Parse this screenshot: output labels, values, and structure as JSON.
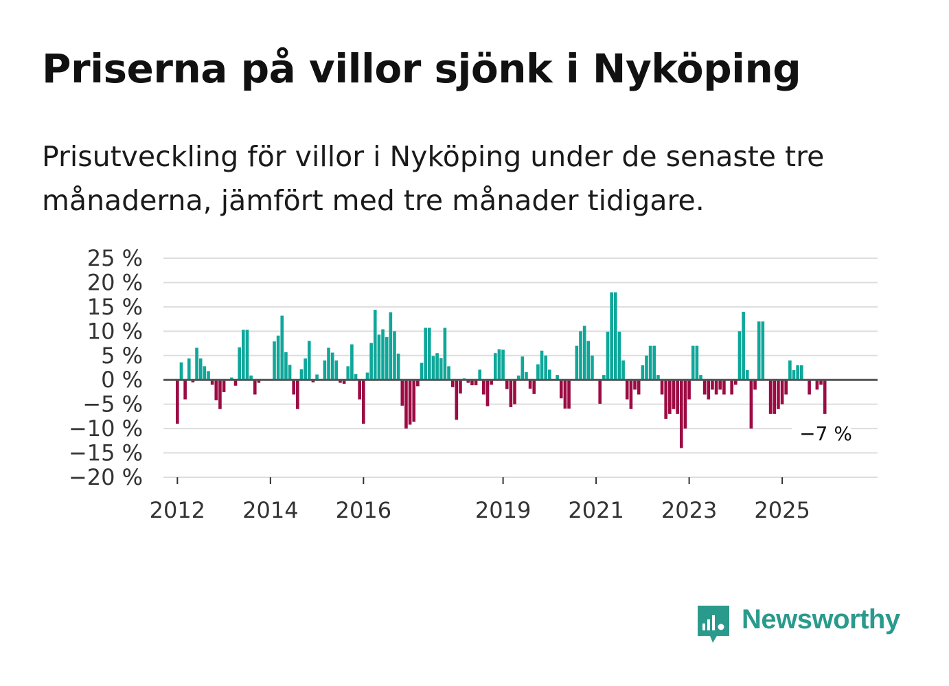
{
  "title": "Priserna på villor sjönk i Nyköping",
  "subtitle": "Prisutveckling för villor i Nyköping under de senaste tre månaderna, jämfört med tre månader tidigare.",
  "brand": "Newsworthy",
  "colors": {
    "positive": "#0fa79a",
    "negative": "#9c0b43",
    "grid": "#dddddd",
    "zero": "#555555",
    "brand": "#2a9a8c"
  },
  "chart_data": {
    "type": "bar",
    "title": "Priserna på villor sjönk i Nyköping",
    "xlabel": "",
    "ylabel": "",
    "ylim": [
      -20,
      25
    ],
    "yticks": [
      25,
      20,
      15,
      10,
      5,
      0,
      -5,
      -10,
      -15,
      -20
    ],
    "ytick_labels": [
      "25 %",
      "20 %",
      "15 %",
      "10 %",
      "5 %",
      "0 %",
      "−5 %",
      "−10 %",
      "−15 %",
      "−20 %"
    ],
    "xlim": [
      2011.7,
      2027.05
    ],
    "xticks": [
      2012,
      2014,
      2016,
      2019,
      2021,
      2023,
      2025
    ],
    "xtick_labels": [
      "2012",
      "2014",
      "2016",
      "2019",
      "2021",
      "2023",
      "2025"
    ],
    "start": 2012.0,
    "step_years": 0.08333,
    "units": "%",
    "annotation": {
      "text": "−7 %",
      "value": -7
    },
    "values": [
      -9,
      3.6,
      -4,
      4.4,
      -0.5,
      6.6,
      4.4,
      2.8,
      1.8,
      -1,
      -4.2,
      -6,
      -2.5,
      0,
      0.5,
      -1.2,
      6.7,
      10.3,
      10.3,
      0.9,
      -3,
      -0.6,
      0,
      0,
      0,
      7.9,
      9.1,
      13.2,
      5.7,
      3.1,
      -3,
      -6,
      2.2,
      4.4,
      8,
      -0.5,
      1.1,
      0,
      4,
      6.6,
      5.6,
      4,
      -0.6,
      -0.8,
      2.8,
      7.3,
      1.2,
      -4,
      -9,
      1.5,
      7.6,
      14.4,
      9.3,
      10.4,
      8.8,
      13.9,
      10,
      5.4,
      -5.3,
      -10,
      -9.2,
      -8.6,
      -1.3,
      3.5,
      10.7,
      10.7,
      4.9,
      5.5,
      4.5,
      10.7,
      2.8,
      -1.5,
      -8.2,
      -2.8,
      0.3,
      -0.6,
      -1.1,
      -1.1,
      2.1,
      -3,
      -5.4,
      -1,
      5.5,
      6.3,
      6.2,
      -1.9,
      -5.6,
      -5,
      0.9,
      4.8,
      1.6,
      -1.8,
      -2.9,
      3.2,
      6,
      5,
      2.1,
      0,
      1,
      -3.8,
      -5.9,
      -5.9,
      0,
      7,
      10,
      11.1,
      8,
      5,
      0,
      -4.9,
      1,
      9.9,
      18,
      18,
      9.9,
      4,
      -4,
      -6,
      -2,
      -3,
      3,
      5,
      7,
      7,
      1,
      -3,
      -8,
      -7,
      -6,
      -7,
      -14,
      -10,
      -4,
      7,
      7,
      1,
      -3,
      -4,
      -2,
      -3,
      -2,
      -3,
      0,
      -3,
      -1,
      10,
      14,
      2,
      -10,
      -2,
      12,
      12,
      0,
      -7,
      -7,
      -6,
      -5,
      -3,
      4,
      2,
      3,
      3,
      0,
      -3,
      0,
      -2,
      -1,
      -7
    ]
  }
}
